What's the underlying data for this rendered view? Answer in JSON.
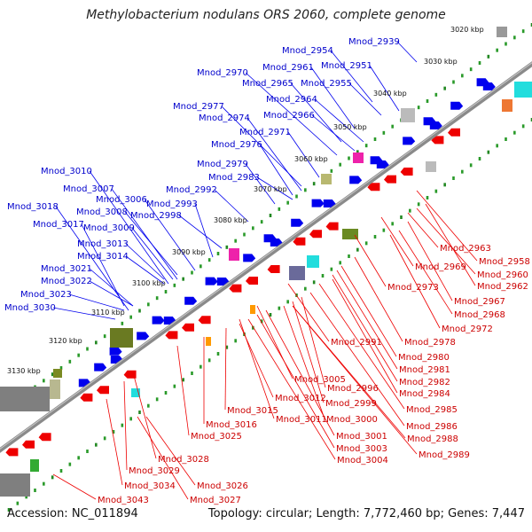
{
  "title": "Methylobacterium nodulans ORS 2060, complete genome",
  "footer": {
    "accession": "Accession: NC_011894",
    "summary": "Topology: circular; Length: 7,772,460 bp; Genes: 7,447"
  },
  "colors": {
    "forward_genes": "#0000ee",
    "reverse_genes": "#ee0000",
    "backbone": "#777777",
    "tick": "#228822"
  },
  "axis_ticks": [
    "3020 kbp",
    "3030 kbp",
    "3040 kbp",
    "3050 kbp",
    "3060 kbp",
    "3070 kbp",
    "3080 kbp",
    "3090 kbp",
    "3100 kbp",
    "3110 kbp",
    "3120 kbp",
    "3130 kbp"
  ],
  "forward_labels": [
    "Mnod_2939",
    "Mnod_2954",
    "Mnod_2951",
    "Mnod_2961",
    "Mnod_2970",
    "Mnod_2955",
    "Mnod_2965",
    "Mnod_2964",
    "Mnod_2977",
    "Mnod_2966",
    "Mnod_2974",
    "Mnod_2971",
    "Mnod_2976",
    "Mnod_2979",
    "Mnod_2983",
    "Mnod_2992",
    "Mnod_3010",
    "Mnod_3007",
    "Mnod_3006",
    "Mnod_2993",
    "Mnod_3018",
    "Mnod_3008",
    "Mnod_2998",
    "Mnod_3017",
    "Mnod_3009",
    "Mnod_3013",
    "Mnod_3014",
    "Mnod_3021",
    "Mnod_3022",
    "Mnod_3023",
    "Mnod_3030"
  ],
  "reverse_labels": [
    "Mnod_2963",
    "Mnod_2958",
    "Mnod_2969",
    "Mnod_2960",
    "Mnod_2962",
    "Mnod_2973",
    "Mnod_2967",
    "Mnod_2968",
    "Mnod_2972",
    "Mnod_2991",
    "Mnod_2978",
    "Mnod_2980",
    "Mnod_2981",
    "Mnod_2982",
    "Mnod_3005",
    "Mnod_2984",
    "Mnod_2996",
    "Mnod_3012",
    "Mnod_2999",
    "Mnod_2985",
    "Mnod_3015",
    "Mnod_3000",
    "Mnod_3011",
    "Mnod_3016",
    "Mnod_2986",
    "Mnod_3001",
    "Mnod_3025",
    "Mnod_2988",
    "Mnod_3003",
    "Mnod_2989",
    "Mnod_3004",
    "Mnod_3028",
    "Mnod_3029",
    "Mnod_3026",
    "Mnod_3034",
    "Mnod_3027",
    "Mnod_3043"
  ]
}
